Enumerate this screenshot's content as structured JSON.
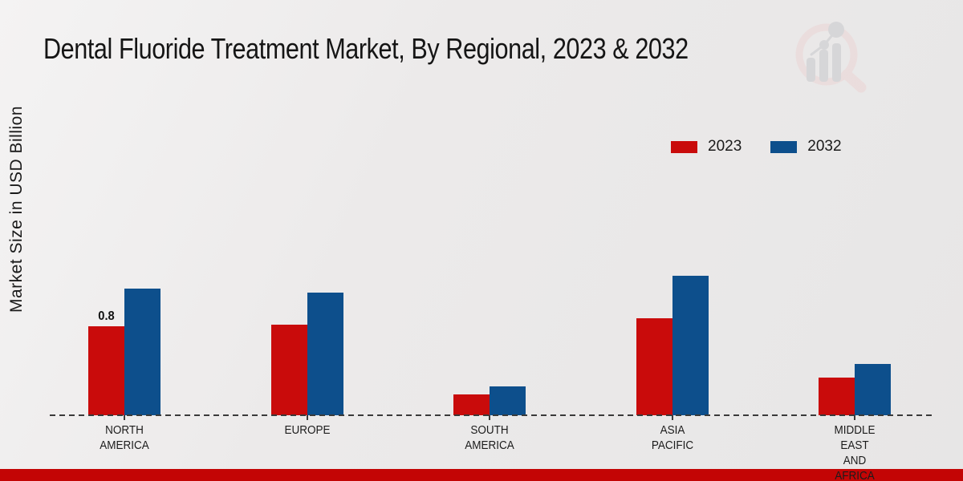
{
  "title": "Dental Fluoride Treatment Market, By Regional, 2023 & 2032",
  "y_axis_label": "Market Size in USD Billion",
  "chart_data": {
    "type": "bar",
    "title": "Dental Fluoride Treatment Market, By Regional, 2023 & 2032",
    "xlabel": "",
    "ylabel": "Market Size in USD Billion",
    "units": "USD Billion",
    "categories": [
      "NORTH AMERICA",
      "EUROPE",
      "SOUTH AMERICA",
      "ASIA PACIFIC",
      "MIDDLE EAST AND AFRICA"
    ],
    "series": [
      {
        "name": "2023",
        "color": "#c90b0b",
        "values": [
          0.8,
          0.81,
          0.19,
          0.87,
          0.34
        ],
        "data_labels": [
          "0.8",
          "",
          "",
          "",
          ""
        ]
      },
      {
        "name": "2032",
        "color": "#0d4f8c",
        "values": [
          1.14,
          1.1,
          0.26,
          1.25,
          0.46
        ],
        "data_labels": [
          "",
          "",
          "",
          "",
          ""
        ]
      }
    ],
    "ylim": [
      0,
      1.4
    ],
    "grid": false,
    "legend_position": "top-right",
    "x_axis_style": "dashed-baseline-with-ticks"
  },
  "branding": {
    "watermark_icon": "bar-chart-magnifier-logo",
    "footer_bar_color": "#c30505"
  }
}
